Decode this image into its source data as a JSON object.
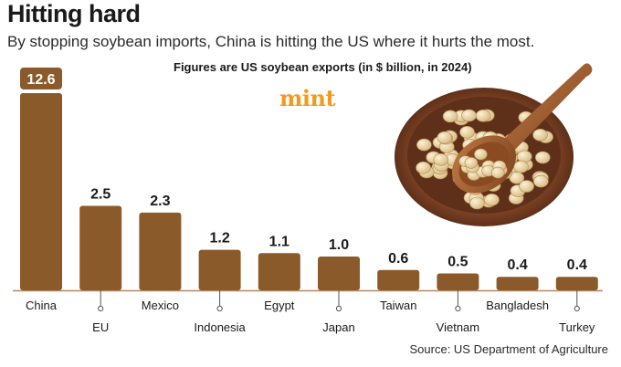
{
  "header": {
    "title": "Hitting hard",
    "subtitle": "By stopping soybean imports, China is hitting the US where it hurts the most.",
    "note": "Figures are US soybean exports (in $ billion, in 2024)",
    "brand": "mint"
  },
  "footer": {
    "source": "Source: US Department of Agriculture"
  },
  "colors": {
    "bar": "#8b5a2b",
    "highlight_badge": "#8b5a2b",
    "brand": "#f39a1e"
  },
  "chart_data": {
    "type": "bar",
    "title": "Hitting hard",
    "subtitle": "Figures are US soybean exports (in $ billion, in 2024)",
    "xlabel": "",
    "ylabel": "",
    "categories": [
      "China",
      "EU",
      "Mexico",
      "Indonesia",
      "Egypt",
      "Japan",
      "Taiwan",
      "Vietnam",
      "Bangladesh",
      "Turkey"
    ],
    "values": [
      12.6,
      2.5,
      2.3,
      1.2,
      1.1,
      1.0,
      0.6,
      0.5,
      0.4,
      0.4
    ],
    "value_labels": [
      "12.6",
      "2.5",
      "2.3",
      "1.2",
      "1.1",
      "1.0",
      "0.6",
      "0.5",
      "0.4",
      "0.4"
    ],
    "highlight": "China",
    "axis_break": "China bar truncated",
    "unit": "$ billion"
  }
}
